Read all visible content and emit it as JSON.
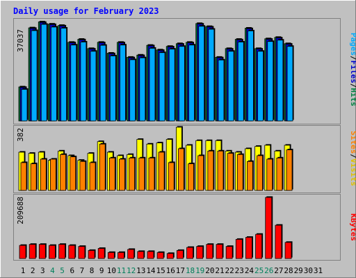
{
  "title": "Daily usage for February 2023",
  "colors": {
    "background": "#c0c0c0",
    "title": "#0000ff",
    "pages": "#00aaff",
    "files": "#0000cc",
    "hits": "#008040",
    "sites": "#ff8000",
    "visits": "#ffff00",
    "kbytes": "#ff0000",
    "weekday_label": "#000000",
    "weekend_label": "#00805c"
  },
  "chart_data": [
    {
      "type": "bar",
      "panel": "hits-files-pages",
      "ymax_label": "37037",
      "ylim": [
        0,
        37037
      ],
      "right_label": [
        "Pages",
        "Files",
        "Hits"
      ],
      "categories": [
        "1",
        "2",
        "3",
        "4",
        "5",
        "6",
        "7",
        "8",
        "9",
        "10",
        "11",
        "12",
        "13",
        "14",
        "15",
        "16",
        "17",
        "18",
        "19",
        "20",
        "21",
        "22",
        "23",
        "24",
        "25",
        "26",
        "27",
        "28",
        "29",
        "30",
        "31"
      ],
      "series": [
        {
          "name": "Hits",
          "values": [
            12500,
            34200,
            36400,
            35600,
            35100,
            28900,
            30000,
            26600,
            28900,
            24900,
            28900,
            23400,
            24200,
            27800,
            26100,
            27400,
            28400,
            28900,
            35800,
            34700,
            23400,
            26600,
            30000,
            34100,
            26600,
            30200,
            30700,
            28400,
            0,
            0,
            0
          ]
        },
        {
          "name": "Files",
          "values": [
            12300,
            34000,
            36200,
            35400,
            34900,
            28700,
            29800,
            26400,
            28700,
            24700,
            28700,
            23200,
            24000,
            27600,
            25900,
            27200,
            28200,
            28700,
            35600,
            34500,
            23200,
            26400,
            29800,
            33900,
            26400,
            30000,
            30500,
            28200,
            0,
            0,
            0
          ]
        },
        {
          "name": "Pages",
          "values": [
            11600,
            33200,
            35500,
            34500,
            34100,
            27900,
            29000,
            25600,
            27800,
            23900,
            27900,
            22500,
            23200,
            26700,
            25100,
            26400,
            27400,
            27900,
            34800,
            33700,
            22400,
            25600,
            29000,
            33100,
            25600,
            29200,
            29700,
            27400,
            0,
            0,
            0
          ]
        }
      ]
    },
    {
      "type": "bar",
      "panel": "visits-sites",
      "ymax_label": "382",
      "ylim": [
        0,
        382
      ],
      "right_label": [
        "Sites",
        "/",
        "Visits"
      ],
      "categories": [
        "1",
        "2",
        "3",
        "4",
        "5",
        "6",
        "7",
        "8",
        "9",
        "10",
        "11",
        "12",
        "13",
        "14",
        "15",
        "16",
        "17",
        "18",
        "19",
        "20",
        "21",
        "22",
        "23",
        "24",
        "25",
        "26",
        "27",
        "28",
        "29",
        "30",
        "31"
      ],
      "series": [
        {
          "name": "Visits",
          "values": [
            231,
            224,
            231,
            182,
            238,
            210,
            182,
            224,
            295,
            231,
            210,
            217,
            308,
            280,
            287,
            308,
            382,
            273,
            301,
            301,
            301,
            238,
            231,
            252,
            266,
            273,
            238,
            273,
            0,
            0,
            0
          ]
        },
        {
          "name": "Sites",
          "values": [
            168,
            161,
            189,
            189,
            217,
            203,
            175,
            168,
            280,
            196,
            189,
            196,
            196,
            196,
            231,
            168,
            252,
            161,
            210,
            238,
            238,
            224,
            217,
            175,
            210,
            189,
            196,
            245,
            0,
            0,
            0
          ]
        }
      ]
    },
    {
      "type": "bar",
      "panel": "kbytes",
      "ymax_label": "209688",
      "ylim": [
        0,
        209688
      ],
      "right_label": [
        "KBytes"
      ],
      "categories": [
        "1",
        "2",
        "3",
        "4",
        "5",
        "6",
        "7",
        "8",
        "9",
        "10",
        "11",
        "12",
        "13",
        "14",
        "15",
        "16",
        "17",
        "18",
        "19",
        "20",
        "21",
        "22",
        "23",
        "24",
        "25",
        "26",
        "27",
        "28",
        "29",
        "30",
        "31"
      ],
      "series": [
        {
          "name": "KBytes",
          "values": [
            45000,
            48500,
            48500,
            45000,
            48500,
            45000,
            41500,
            27700,
            34600,
            20800,
            20800,
            31200,
            24200,
            24200,
            20800,
            17300,
            27700,
            38100,
            41500,
            48500,
            48500,
            41500,
            65700,
            72700,
            83100,
            209700,
            114200,
            55400,
            0,
            0,
            0
          ]
        }
      ]
    }
  ],
  "x_labels": [
    {
      "text": "1",
      "weekend": false
    },
    {
      "text": "2",
      "weekend": false
    },
    {
      "text": "3",
      "weekend": false
    },
    {
      "text": "4",
      "weekend": true
    },
    {
      "text": "5",
      "weekend": true
    },
    {
      "text": "6",
      "weekend": false
    },
    {
      "text": "7",
      "weekend": false
    },
    {
      "text": "8",
      "weekend": false
    },
    {
      "text": "9",
      "weekend": false
    },
    {
      "text": "10",
      "weekend": false
    },
    {
      "text": "11",
      "weekend": true
    },
    {
      "text": "12",
      "weekend": true
    },
    {
      "text": "13",
      "weekend": false
    },
    {
      "text": "14",
      "weekend": false
    },
    {
      "text": "15",
      "weekend": false
    },
    {
      "text": "16",
      "weekend": false
    },
    {
      "text": "17",
      "weekend": false
    },
    {
      "text": "18",
      "weekend": true
    },
    {
      "text": "19",
      "weekend": true
    },
    {
      "text": "20",
      "weekend": false
    },
    {
      "text": "21",
      "weekend": false
    },
    {
      "text": "22",
      "weekend": false
    },
    {
      "text": "23",
      "weekend": false
    },
    {
      "text": "24",
      "weekend": false
    },
    {
      "text": "25",
      "weekend": true
    },
    {
      "text": "26",
      "weekend": true
    },
    {
      "text": "27",
      "weekend": false
    },
    {
      "text": "28",
      "weekend": false
    },
    {
      "text": "29",
      "weekend": false
    },
    {
      "text": "30",
      "weekend": false
    },
    {
      "text": "31",
      "weekend": false
    }
  ]
}
